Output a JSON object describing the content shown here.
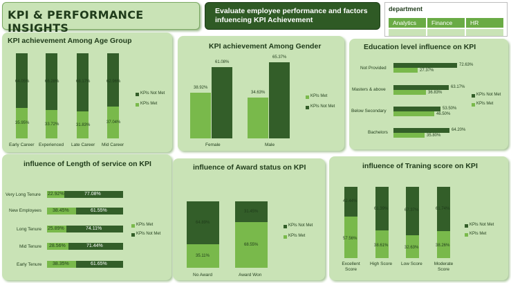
{
  "header": {
    "title": "KPI & PERFORMANCE INSIGHTS",
    "subtitle": "Evaluate employee performance and factors infuencing KPI Achievement"
  },
  "slicer": {
    "title": "department",
    "options": [
      "Analytics",
      "Finance",
      "HR"
    ]
  },
  "colors": {
    "kpi_not_met": "#335e29",
    "kpi_met": "#79b94b",
    "panel": "#c9e3b6"
  },
  "legend": {
    "not_met": "KPIs Not Met",
    "met": "KPIs Met"
  },
  "chart_data": [
    {
      "type": "bar",
      "stacked": "100%",
      "title": "KPI achievement Among Age Group",
      "categories": [
        "Early Career",
        "Experienced",
        "Late Career",
        "Mid Career"
      ],
      "series": [
        {
          "name": "KPIs Not Met",
          "values": [
            64.05,
            66.28,
            68.17,
            62.96
          ]
        },
        {
          "name": "KPIs Met",
          "values": [
            35.95,
            33.72,
            31.83,
            37.04
          ]
        }
      ],
      "value_labels": {
        "KPIs Not Met": [
          "64.05%",
          "66.28%",
          "68.17%",
          "62.96%"
        ],
        "KPIs Met": [
          "35.95%",
          "33.72%",
          "31.83%",
          "37.04%"
        ]
      }
    },
    {
      "type": "bar",
      "title": "KPI achievement Among Gender",
      "categories": [
        "Female",
        "Male"
      ],
      "series": [
        {
          "name": "KPIs Met",
          "values": [
            38.92,
            34.63
          ]
        },
        {
          "name": "KPIs Not Met",
          "values": [
            61.08,
            65.37
          ]
        }
      ],
      "value_labels": {
        "KPIs Met": [
          "38.92%",
          "34.63%"
        ],
        "KPIs Not Met": [
          "61.08%",
          "65.37%"
        ]
      }
    },
    {
      "type": "bar",
      "orientation": "horizontal",
      "title": "Education level influence on KPI",
      "categories": [
        "Not Provided",
        "Masters & above",
        "Below Secondary",
        "Bachelors"
      ],
      "series": [
        {
          "name": "KPIs Not Met",
          "values": [
            72.63,
            63.17,
            53.5,
            64.2
          ]
        },
        {
          "name": "KPIs Met",
          "values": [
            27.37,
            36.83,
            46.5,
            35.8
          ]
        }
      ],
      "value_labels": {
        "KPIs Not Met": [
          "72.63%",
          "63.17%",
          "53.50%",
          "64.20%"
        ],
        "KPIs Met": [
          "27.37%",
          "36.83%",
          "46.50%",
          "35.80%"
        ]
      }
    },
    {
      "type": "bar",
      "orientation": "horizontal",
      "stacked": "100%",
      "title": "influence of Length of service on KPI",
      "categories": [
        "Very Long Tenure",
        "New Employees",
        "Long Tenure",
        "Mid Tenure",
        "Early Tenure"
      ],
      "series": [
        {
          "name": "KPIs Met",
          "values": [
            22.92,
            38.45,
            25.89,
            28.56,
            38.35
          ]
        },
        {
          "name": "KPIs Not Met",
          "values": [
            77.08,
            61.55,
            74.11,
            71.44,
            61.65
          ]
        }
      ],
      "value_labels": {
        "KPIs Met": [
          "22.92%",
          "38.45%",
          "25.89%",
          "28.56%",
          "38.35%"
        ],
        "KPIs Not Met": [
          "77.08%",
          "61.55%",
          "74.11%",
          "71.44%",
          "61.65%"
        ]
      }
    },
    {
      "type": "bar",
      "stacked": "100%",
      "title": "influence of Award status on KPI",
      "categories": [
        "No Award",
        "Award Won"
      ],
      "series": [
        {
          "name": "KPIs Not Met",
          "values": [
            64.89,
            31.45
          ]
        },
        {
          "name": "KPIs Met",
          "values": [
            35.11,
            68.55
          ]
        }
      ],
      "value_labels": {
        "KPIs Not Met": [
          "64.89%",
          "31.45%"
        ],
        "KPIs Met": [
          "35.11%",
          "68.55%"
        ]
      }
    },
    {
      "type": "bar",
      "stacked": "100%",
      "title": "influence of Traning score on KPI",
      "categories": [
        "Excellent Score",
        "High Score",
        "Low Score",
        "Moderate Score"
      ],
      "series": [
        {
          "name": "KPIs Not Met",
          "values": [
            42.44,
            61.39,
            67.37,
            61.74
          ]
        },
        {
          "name": "KPIs Met",
          "values": [
            57.56,
            38.61,
            32.63,
            38.26
          ]
        }
      ],
      "value_labels": {
        "KPIs Not Met": [
          "42.44%",
          "61.39%",
          "67.37%",
          "61.74%"
        ],
        "KPIs Met": [
          "57.56%",
          "38.61%",
          "32.63%",
          "38.26%"
        ]
      }
    }
  ]
}
